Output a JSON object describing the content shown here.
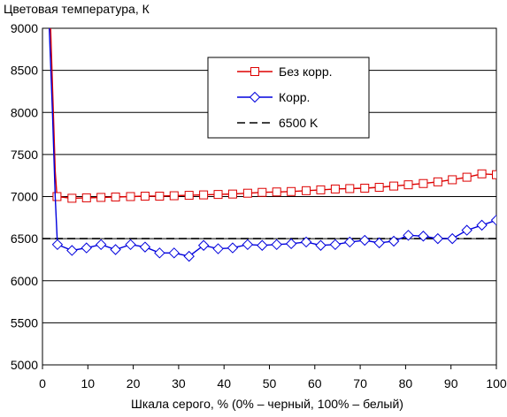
{
  "chart_data": {
    "type": "line",
    "title": "Цветовая температура, К",
    "xlabel": "Шкала серого, % (0% – черный, 100% – белый)",
    "ylabel": "",
    "xlim": [
      0,
      100
    ],
    "ylim": [
      5000,
      9000
    ],
    "x_ticks": [
      "0",
      "10",
      "20",
      "30",
      "40",
      "50",
      "60",
      "70",
      "80",
      "90",
      "100"
    ],
    "y_ticks": [
      "5000",
      "5500",
      "6000",
      "6500",
      "7000",
      "7500",
      "8000",
      "8500",
      "9000"
    ],
    "grid": "horizontal",
    "legend_position": "top-right",
    "series": [
      {
        "name": "Без корр.",
        "color": "#dd0000",
        "marker": "square",
        "line_style": "solid",
        "points": [
          [
            1.8,
            9000
          ],
          [
            2.4,
            8000
          ],
          [
            2.8,
            7300
          ],
          [
            3.2,
            7000
          ],
          [
            6.5,
            6980
          ],
          [
            9.7,
            6985
          ],
          [
            12.9,
            6990
          ],
          [
            16.1,
            6995
          ],
          [
            19.4,
            7000
          ],
          [
            22.6,
            7005
          ],
          [
            25.8,
            7005
          ],
          [
            29.0,
            7010
          ],
          [
            32.3,
            7015
          ],
          [
            35.5,
            7020
          ],
          [
            38.7,
            7025
          ],
          [
            41.9,
            7030
          ],
          [
            45.2,
            7040
          ],
          [
            48.4,
            7050
          ],
          [
            51.6,
            7055
          ],
          [
            54.8,
            7060
          ],
          [
            58.1,
            7070
          ],
          [
            61.3,
            7080
          ],
          [
            64.5,
            7090
          ],
          [
            67.7,
            7095
          ],
          [
            71.0,
            7100
          ],
          [
            74.2,
            7110
          ],
          [
            77.4,
            7125
          ],
          [
            80.6,
            7140
          ],
          [
            83.9,
            7155
          ],
          [
            87.1,
            7175
          ],
          [
            90.3,
            7200
          ],
          [
            93.5,
            7230
          ],
          [
            96.8,
            7270
          ],
          [
            100.0,
            7260
          ]
        ]
      },
      {
        "name": "Корр.",
        "color": "#0000dd",
        "marker": "diamond",
        "line_style": "solid",
        "points": [
          [
            1.5,
            9000
          ],
          [
            2.2,
            8000
          ],
          [
            2.8,
            7000
          ],
          [
            3.3,
            6430
          ],
          [
            6.5,
            6360
          ],
          [
            9.7,
            6390
          ],
          [
            12.9,
            6430
          ],
          [
            16.1,
            6370
          ],
          [
            19.4,
            6430
          ],
          [
            22.6,
            6400
          ],
          [
            25.8,
            6330
          ],
          [
            29.0,
            6330
          ],
          [
            32.3,
            6290
          ],
          [
            35.5,
            6420
          ],
          [
            38.7,
            6380
          ],
          [
            41.9,
            6390
          ],
          [
            45.2,
            6430
          ],
          [
            48.4,
            6420
          ],
          [
            51.6,
            6430
          ],
          [
            54.8,
            6440
          ],
          [
            58.1,
            6460
          ],
          [
            61.3,
            6420
          ],
          [
            64.5,
            6430
          ],
          [
            67.7,
            6460
          ],
          [
            71.0,
            6480
          ],
          [
            74.2,
            6450
          ],
          [
            77.4,
            6470
          ],
          [
            80.6,
            6540
          ],
          [
            83.9,
            6530
          ],
          [
            87.1,
            6500
          ],
          [
            90.3,
            6500
          ],
          [
            93.5,
            6600
          ],
          [
            96.8,
            6660
          ],
          [
            100.0,
            6720
          ]
        ]
      },
      {
        "name": "6500 K",
        "color": "#000000",
        "marker": "none",
        "line_style": "dashed",
        "points": [
          [
            0,
            6500
          ],
          [
            100,
            6500
          ]
        ]
      }
    ]
  }
}
